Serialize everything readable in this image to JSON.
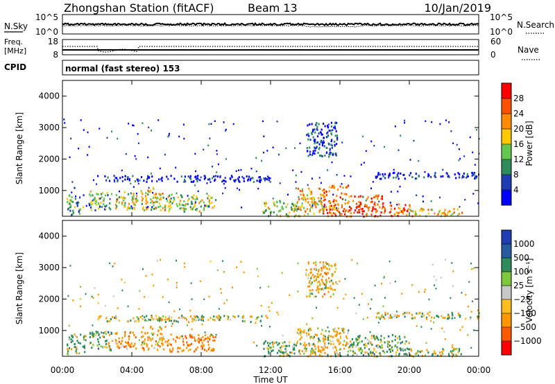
{
  "header": {
    "station_title": "Zhongshan Station (fitACF)",
    "beam": "Beam 13",
    "date": "10/Jan/2019"
  },
  "noise_panel": {
    "label": "N.Sky",
    "left_ticks": [
      "10^5",
      "10^0"
    ],
    "right_ticks": [
      "10^5",
      "10^0"
    ],
    "right_label": "N.Search",
    "legend_line": "dotted"
  },
  "freq_panel": {
    "label_line1": "Freq.",
    "label_line2": "[MHz]",
    "left_ticks": [
      "18",
      "8"
    ],
    "right_ticks": [
      "60",
      "0"
    ],
    "right_label": "Nave",
    "legend_line": "dotted"
  },
  "cpid": {
    "label": "CPID",
    "text": "normal (fast stereo) 153"
  },
  "x_axis": {
    "ticks": [
      "00:00",
      "04:00",
      "08:00",
      "12:00",
      "16:00",
      "20:00",
      "00:00"
    ],
    "tick_hours": [
      0,
      4,
      8,
      12,
      16,
      20,
      24
    ],
    "range_hours": [
      0,
      24
    ],
    "label": "Time UT"
  },
  "y_axis": {
    "label": "Slant Range [km]",
    "ticks": [
      "4000",
      "3000",
      "2000",
      "1000"
    ],
    "tick_values": [
      4000,
      3000,
      2000,
      1000
    ],
    "range_km": [
      180,
      4500
    ]
  },
  "colors": {
    "axis": "#000000",
    "power_scale": [
      "#0000ff",
      "#1e3cb4",
      "#2d8c5a",
      "#64c850",
      "#ffc800",
      "#ff8c00",
      "#ff5000",
      "#ff0000"
    ],
    "velocity_scale": [
      "#ff0000",
      "#ff5a00",
      "#ff9600",
      "#ffbe1e",
      "#c8c8c8",
      "#7dc83c",
      "#2d8c5a",
      "#285aa0",
      "#1e3cb4"
    ]
  },
  "power_colorbar": {
    "label": "Power [dB]",
    "ticks": [
      "28",
      "24",
      "20",
      "16",
      "12",
      "8",
      "4"
    ]
  },
  "velocity_colorbar": {
    "label": "Velocity [m s⁻¹]",
    "ticks": [
      "1000",
      "500",
      "100",
      "25",
      "−25",
      "−100",
      "−500",
      "−1000"
    ]
  },
  "chart_data": [
    {
      "type": "heatmap",
      "panel": "power",
      "xlabel": "Time UT",
      "ylabel": "Slant Range [km]",
      "colorbar_label": "Power [dB]",
      "xlim_hours": [
        0,
        24
      ],
      "ylim_km": [
        180,
        4500
      ],
      "clim_db": [
        0,
        32
      ],
      "clusters": [
        {
          "t0": 0.2,
          "t1": 1.2,
          "r0": 250,
          "r1": 900,
          "level": 0.35
        },
        {
          "t0": 1.5,
          "t1": 2.8,
          "r0": 400,
          "r1": 1000,
          "level": 0.4
        },
        {
          "t0": 3.0,
          "t1": 4.3,
          "r0": 400,
          "r1": 1000,
          "level": 0.5
        },
        {
          "t0": 4.5,
          "t1": 5.9,
          "r0": 400,
          "r1": 1150,
          "level": 0.55
        },
        {
          "t0": 6.0,
          "t1": 8.8,
          "r0": 350,
          "r1": 900,
          "level": 0.45
        },
        {
          "t0": 11.5,
          "t1": 13.5,
          "r0": 200,
          "r1": 700,
          "level": 0.5
        },
        {
          "t0": 13.5,
          "t1": 15.0,
          "r0": 200,
          "r1": 1100,
          "level": 0.65
        },
        {
          "t0": 15.0,
          "t1": 16.5,
          "r0": 200,
          "r1": 1200,
          "level": 0.75
        },
        {
          "t0": 16.5,
          "t1": 18.5,
          "r0": 200,
          "r1": 900,
          "level": 0.85
        },
        {
          "t0": 18.5,
          "t1": 20.0,
          "r0": 200,
          "r1": 600,
          "level": 0.75
        },
        {
          "t0": 20.0,
          "t1": 23.0,
          "r0": 200,
          "r1": 450,
          "level": 0.6
        },
        {
          "t0": 14.0,
          "t1": 15.8,
          "r0": 2100,
          "r1": 3200,
          "level": 0.15
        },
        {
          "t0": 2.0,
          "t1": 12.0,
          "r0": 1300,
          "r1": 1500,
          "level": 0.1
        },
        {
          "t0": 18.0,
          "t1": 24.0,
          "r0": 1400,
          "r1": 1600,
          "level": 0.1
        }
      ]
    },
    {
      "type": "heatmap",
      "panel": "velocity",
      "xlabel": "Time UT",
      "ylabel": "Slant Range [km]",
      "colorbar_label": "Velocity [m s⁻¹]",
      "xlim_hours": [
        0,
        24
      ],
      "ylim_km": [
        180,
        4500
      ],
      "clim_ms": [
        -1000,
        1000
      ],
      "clusters": [
        {
          "t0": 0.2,
          "t1": 1.3,
          "r0": 250,
          "r1": 900,
          "vel": 100
        },
        {
          "t0": 1.5,
          "t1": 2.8,
          "r0": 400,
          "r1": 1000,
          "vel": 200
        },
        {
          "t0": 3.0,
          "t1": 4.3,
          "r0": 400,
          "r1": 1000,
          "vel": -300
        },
        {
          "t0": 4.5,
          "t1": 5.9,
          "r0": 400,
          "r1": 1150,
          "vel": -250
        },
        {
          "t0": 6.0,
          "t1": 8.8,
          "r0": 350,
          "r1": 900,
          "vel": -400
        },
        {
          "t0": 11.5,
          "t1": 13.5,
          "r0": 200,
          "r1": 700,
          "vel": 150
        },
        {
          "t0": 13.5,
          "t1": 16.5,
          "r0": 200,
          "r1": 1100,
          "vel": -150
        },
        {
          "t0": 16.5,
          "t1": 20.0,
          "r0": 200,
          "r1": 900,
          "vel": 200
        },
        {
          "t0": 20.0,
          "t1": 23.0,
          "r0": 200,
          "r1": 450,
          "vel": 0
        },
        {
          "t0": 14.0,
          "t1": 15.8,
          "r0": 2100,
          "r1": 3200,
          "vel": -200
        },
        {
          "t0": 2.0,
          "t1": 12.0,
          "r0": 1300,
          "r1": 1500,
          "vel": 0
        },
        {
          "t0": 18.0,
          "t1": 24.0,
          "r0": 1400,
          "r1": 1600,
          "vel": 0
        }
      ]
    }
  ]
}
